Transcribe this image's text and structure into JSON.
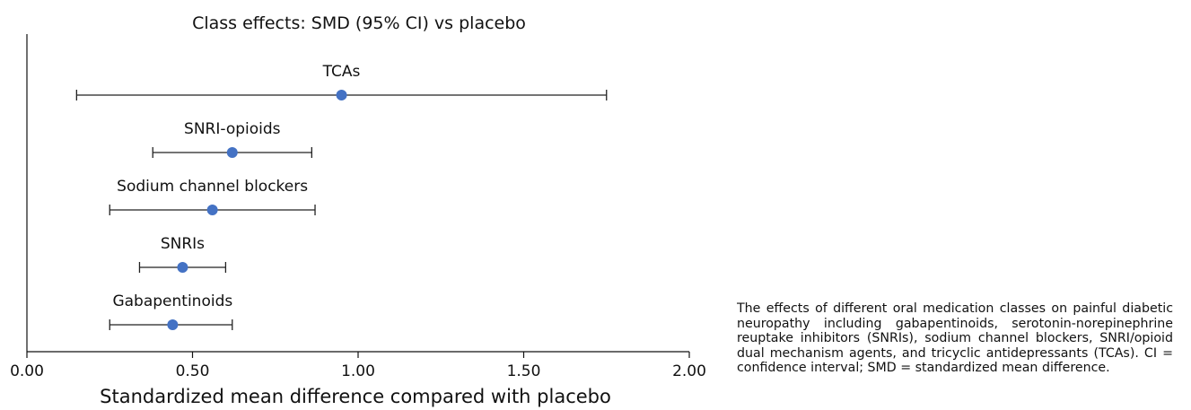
{
  "chart_data": {
    "type": "forest",
    "title": "Class effects: SMD (95% CI) vs placebo",
    "xlabel": "Standardized mean difference compared with placebo",
    "ylabel": "",
    "xlim": [
      0,
      2
    ],
    "xticks": [
      "0.00",
      "0.50",
      "1.00",
      "1.50",
      "2.00"
    ],
    "grid": false,
    "point_color": "#4472c4",
    "categories": [
      "TCAs",
      "SNRI-opioids",
      "Sodium channel blockers",
      "SNRIs",
      "Gabapentinoids"
    ],
    "estimates": [
      0.95,
      0.62,
      0.56,
      0.47,
      0.44
    ],
    "ci_lower": [
      0.15,
      0.38,
      0.25,
      0.34,
      0.25
    ],
    "ci_upper": [
      1.75,
      0.86,
      0.87,
      0.6,
      0.62
    ]
  },
  "caption": "The effects of different oral medication classes on painful diabetic neuropathy including gabapentinoids, serotonin-norepinephrine reuptake inhibitors (SNRIs), sodium channel blockers, SNRI/opioid dual mechanism agents, and tricyclic antidepressants (TCAs). CI = confidence interval; SMD = standardized mean difference."
}
